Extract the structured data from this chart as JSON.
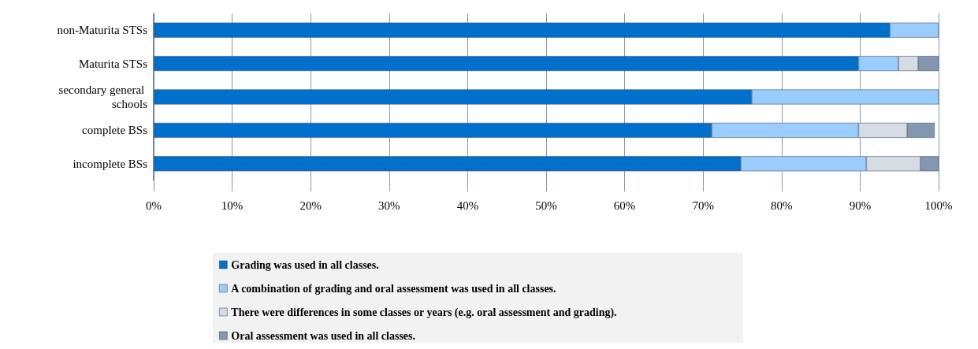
{
  "chart_data": {
    "type": "bar",
    "orientation": "horizontal",
    "stacked": true,
    "categories": [
      "non-Maturita STSs",
      "Maturita STSs",
      "secondary general schools",
      "complete BSs",
      "incomplete BSs"
    ],
    "series": [
      {
        "name": "Grading was used in all classes.",
        "color": "#0070cc",
        "values": [
          93.8,
          89.8,
          76.2,
          71.1,
          74.8
        ]
      },
      {
        "name": "A combination of grading and oral assessment was used in all classes.",
        "color": "#99ccff",
        "values": [
          6.2,
          5.1,
          23.8,
          18.7,
          16.0
        ]
      },
      {
        "name": "There were differences in some classes or years (e.g. oral assessment and grading).",
        "color": "#d6dce4",
        "values": [
          null,
          2.5,
          null,
          6.2,
          6.9
        ]
      },
      {
        "name": "Oral assessment was used in all classes.",
        "color": "#8497b0",
        "values": [
          null,
          2.6,
          null,
          3.5,
          2.3
        ]
      }
    ],
    "xlim": [
      0,
      100
    ],
    "xticks": [
      {
        "value": 0,
        "label": "0%"
      },
      {
        "value": 10,
        "label": "10%"
      },
      {
        "value": 20,
        "label": "20%"
      },
      {
        "value": 30,
        "label": "30%"
      },
      {
        "value": 40,
        "label": "40%"
      },
      {
        "value": 50,
        "label": "50%"
      },
      {
        "value": 60,
        "label": "60%"
      },
      {
        "value": 70,
        "label": "70%"
      },
      {
        "value": 80,
        "label": "80%"
      },
      {
        "value": 90,
        "label": "90%"
      },
      {
        "value": 100,
        "label": "100%"
      }
    ],
    "grid": "x",
    "legend": "bottom"
  }
}
